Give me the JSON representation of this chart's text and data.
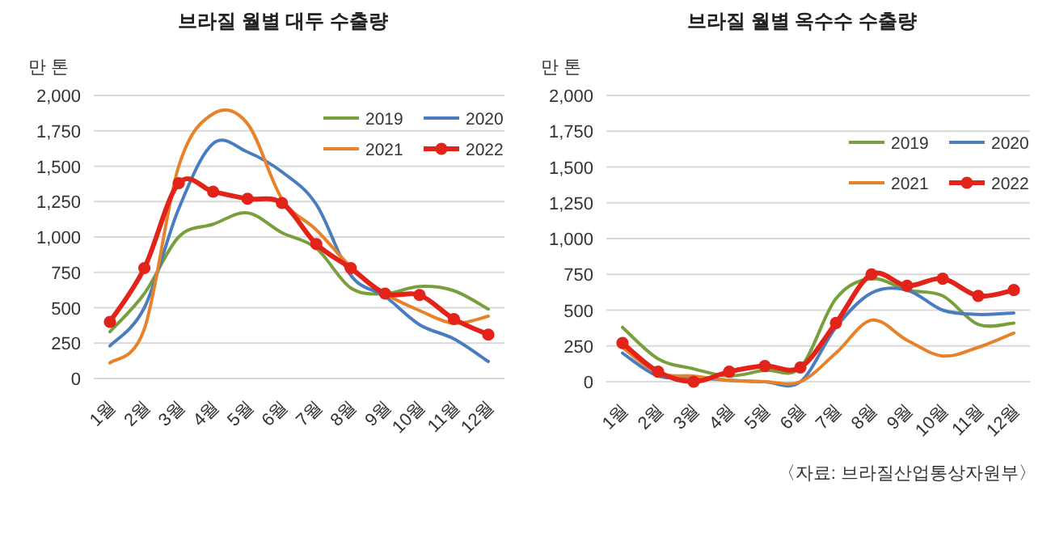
{
  "chart_data": [
    {
      "type": "line",
      "title": "브라질 월별 대두 수출량",
      "ylabel": "만 톤",
      "categories": [
        "1월",
        "2월",
        "3월",
        "4월",
        "5월",
        "6월",
        "7월",
        "8월",
        "9월",
        "10월",
        "11월",
        "12월"
      ],
      "ylim": [
        0,
        2000
      ],
      "yticks": [
        0,
        250,
        500,
        750,
        {
          "value": 1000,
          "label": "1,000"
        },
        {
          "value": 1250,
          "label": "1,250"
        },
        {
          "value": 1500,
          "label": "1,500"
        },
        {
          "value": 1750,
          "label": "1,750"
        },
        {
          "value": 2000,
          "label": "2,000"
        }
      ],
      "grid": "y",
      "legend": "top right",
      "series": [
        {
          "name": "2019",
          "color": "#77a03c",
          "marker": "none",
          "values": [
            330,
            600,
            1000,
            1090,
            1170,
            1030,
            920,
            640,
            600,
            650,
            620,
            490
          ]
        },
        {
          "name": "2020",
          "color": "#4a7cc0",
          "marker": "none",
          "values": [
            230,
            500,
            1200,
            1660,
            1600,
            1460,
            1230,
            730,
            580,
            380,
            280,
            120
          ]
        },
        {
          "name": "2021",
          "color": "#e8822a",
          "marker": "none",
          "values": [
            110,
            350,
            1500,
            1870,
            1800,
            1270,
            1050,
            790,
            600,
            480,
            390,
            440
          ]
        },
        {
          "name": "2022",
          "color": "#e2231a",
          "marker": "circle",
          "values": [
            400,
            780,
            1380,
            1320,
            1270,
            1240,
            950,
            780,
            600,
            590,
            420,
            310
          ]
        }
      ]
    },
    {
      "type": "line",
      "title": "브라질 월별 옥수수 수출량",
      "ylabel": "만 톤",
      "categories": [
        "1월",
        "2월",
        "3월",
        "4월",
        "5월",
        "6월",
        "7월",
        "8월",
        "9월",
        "10월",
        "11월",
        "12월"
      ],
      "ylim": [
        0,
        2000
      ],
      "yticks": [
        0,
        250,
        500,
        750,
        {
          "value": 1000,
          "label": "1,000"
        },
        {
          "value": 1250,
          "label": "1,250"
        },
        {
          "value": 1500,
          "label": "1,500"
        },
        {
          "value": 1750,
          "label": "1,750"
        },
        {
          "value": 2000,
          "label": "2,000"
        }
      ],
      "grid": "y",
      "legend": "top right",
      "annotations": [
        "〈자료: 브라질산업통상자원부〉"
      ],
      "series": [
        {
          "name": "2019",
          "color": "#77a03c",
          "marker": "none",
          "values": [
            380,
            160,
            90,
            40,
            80,
            100,
            580,
            720,
            640,
            600,
            400,
            410
          ]
        },
        {
          "name": "2020",
          "color": "#4a7cc0",
          "marker": "none",
          "values": [
            200,
            40,
            30,
            10,
            0,
            0,
            380,
            620,
            640,
            500,
            470,
            480
          ]
        },
        {
          "name": "2021",
          "color": "#e8822a",
          "marker": "none",
          "values": [
            240,
            60,
            40,
            10,
            0,
            0,
            200,
            430,
            290,
            180,
            240,
            340
          ]
        },
        {
          "name": "2022",
          "color": "#e2231a",
          "marker": "circle",
          "values": [
            270,
            70,
            0,
            70,
            110,
            100,
            410,
            750,
            670,
            720,
            600,
            640
          ]
        }
      ]
    }
  ]
}
